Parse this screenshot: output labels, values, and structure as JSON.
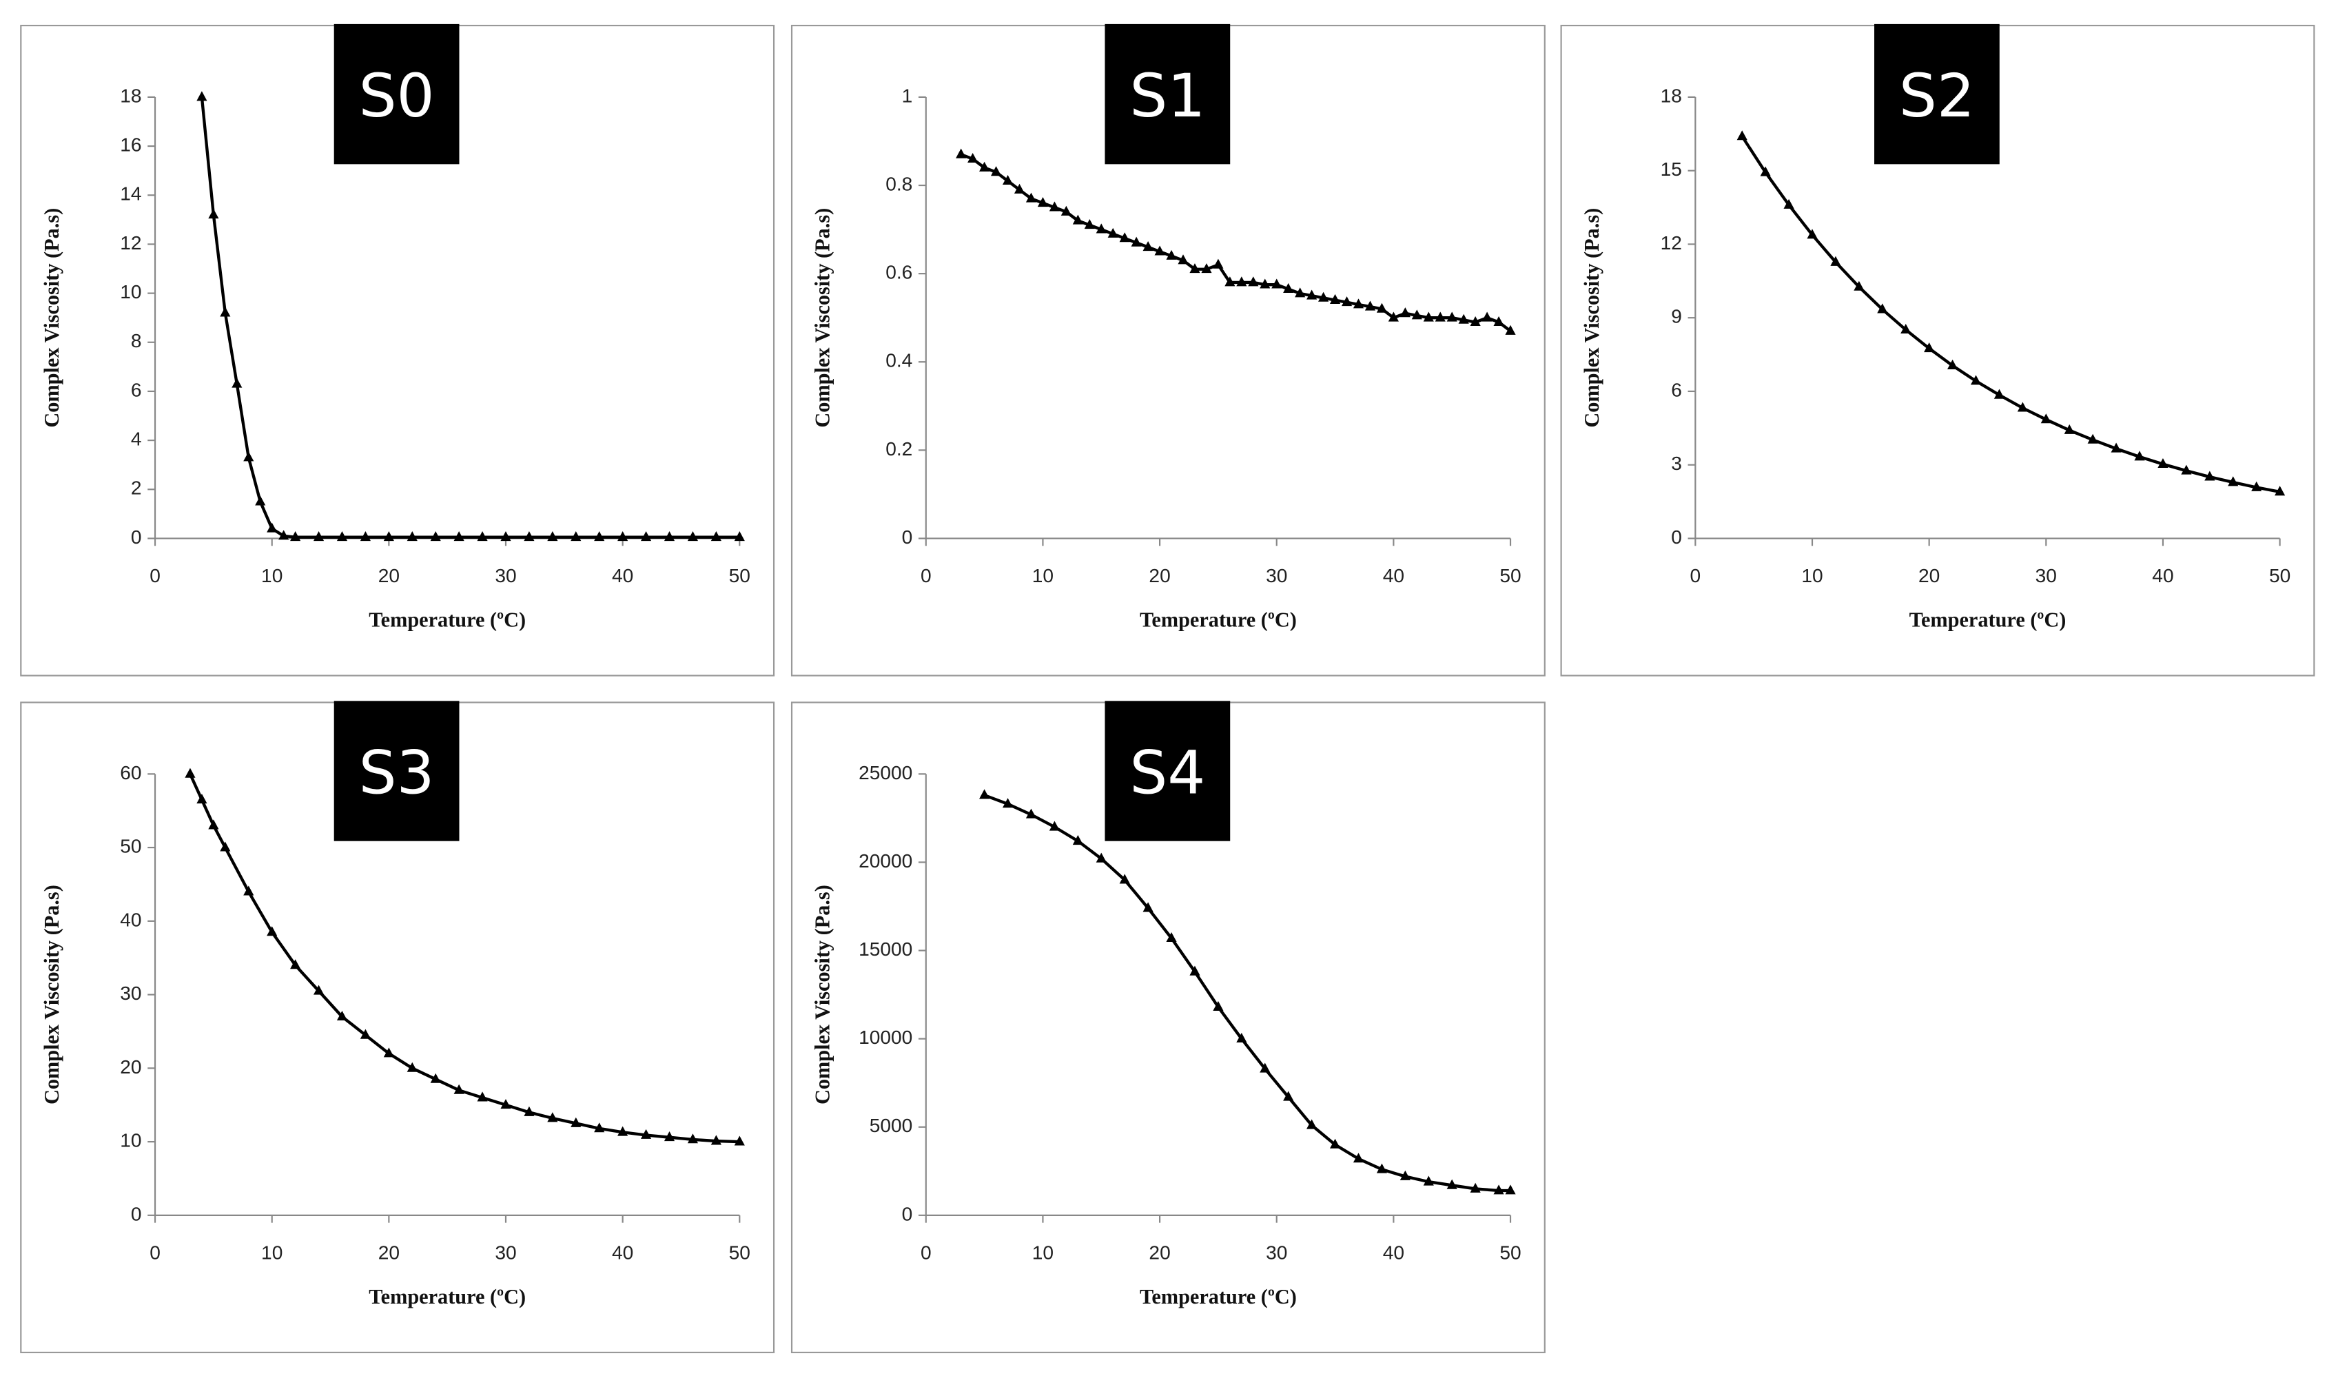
{
  "chart_data": [
    {
      "type": "line",
      "title": "S0",
      "xlabel": "Temperature (ºC)",
      "ylabel": "Complex Viscosity (Pa.s)",
      "x": [
        4,
        5,
        6,
        7,
        8,
        9,
        10,
        11,
        12,
        14,
        16,
        18,
        20,
        22,
        24,
        26,
        28,
        30,
        32,
        34,
        36,
        38,
        40,
        42,
        44,
        46,
        48,
        50
      ],
      "values": [
        18,
        13.2,
        9.2,
        6.3,
        3.3,
        1.5,
        0.4,
        0.1,
        0.05,
        0.05,
        0.05,
        0.05,
        0.05,
        0.05,
        0.05,
        0.05,
        0.05,
        0.05,
        0.05,
        0.05,
        0.05,
        0.05,
        0.05,
        0.05,
        0.05,
        0.05,
        0.05,
        0.05
      ],
      "color": "#000000",
      "xlim": [
        0,
        50
      ],
      "xticks": [
        0,
        10,
        20,
        30,
        40,
        50
      ],
      "ylim": [
        0,
        18
      ],
      "yticks": [
        0,
        2,
        4,
        6,
        8,
        10,
        12,
        14,
        16,
        18
      ]
    },
    {
      "type": "line",
      "title": "S1",
      "xlabel": "Temperature (ºC)",
      "ylabel": "Complex Viscosity (Pa.s)",
      "x": [
        3,
        4,
        5,
        6,
        7,
        8,
        9,
        10,
        11,
        12,
        13,
        14,
        15,
        16,
        17,
        18,
        19,
        20,
        21,
        22,
        23,
        24,
        25,
        26,
        27,
        28,
        29,
        30,
        31,
        32,
        33,
        34,
        35,
        36,
        37,
        38,
        39,
        40,
        41,
        42,
        43,
        44,
        45,
        46,
        47,
        48,
        49,
        50
      ],
      "values": [
        0.87,
        0.86,
        0.84,
        0.83,
        0.81,
        0.79,
        0.77,
        0.76,
        0.75,
        0.74,
        0.72,
        0.71,
        0.7,
        0.69,
        0.68,
        0.67,
        0.66,
        0.65,
        0.64,
        0.63,
        0.61,
        0.61,
        0.62,
        0.58,
        0.58,
        0.58,
        0.575,
        0.575,
        0.565,
        0.555,
        0.55,
        0.545,
        0.54,
        0.535,
        0.53,
        0.525,
        0.52,
        0.5,
        0.51,
        0.505,
        0.5,
        0.5,
        0.5,
        0.495,
        0.49,
        0.5,
        0.49,
        0.47
      ],
      "color": "#000000",
      "xlim": [
        0,
        50
      ],
      "xticks": [
        0,
        10,
        20,
        30,
        40,
        50
      ],
      "ylim": [
        0,
        1
      ],
      "yticks": [
        0,
        0.2,
        0.4,
        0.6,
        0.8,
        1
      ]
    },
    {
      "type": "line",
      "title": "S2",
      "xlabel": "Temperature (ºC)",
      "ylabel": "Complex Viscosity (Pa.s)",
      "x": [
        4,
        6,
        8,
        10,
        12,
        14,
        16,
        18,
        20,
        22,
        24,
        26,
        28,
        30,
        32,
        34,
        36,
        38,
        40,
        42,
        44,
        46,
        48,
        50
      ],
      "values": [
        16.4,
        14.93,
        13.6,
        12.38,
        11.27,
        10.26,
        9.34,
        8.51,
        7.75,
        7.05,
        6.42,
        5.85,
        5.32,
        4.85,
        4.41,
        4.02,
        3.66,
        3.33,
        3.03,
        2.76,
        2.51,
        2.29,
        2.08,
        1.9
      ],
      "color": "#000000",
      "xlim": [
        0,
        50
      ],
      "xticks": [
        0,
        10,
        20,
        30,
        40,
        50
      ],
      "ylim": [
        0,
        18
      ],
      "yticks": [
        0,
        3,
        6,
        9,
        12,
        15,
        18
      ]
    },
    {
      "type": "line",
      "title": "S3",
      "xlabel": "Temperature (ºC)",
      "ylabel": "Complex Viscosity (Pa.s)",
      "x": [
        3,
        4,
        5,
        6,
        8,
        10,
        12,
        14,
        16,
        18,
        20,
        22,
        24,
        26,
        28,
        30,
        32,
        34,
        36,
        38,
        40,
        42,
        44,
        46,
        48,
        50
      ],
      "values": [
        60,
        56.5,
        53,
        50,
        44,
        38.5,
        34,
        30.5,
        27,
        24.5,
        22,
        20,
        18.5,
        17,
        16,
        15,
        14,
        13.2,
        12.5,
        11.8,
        11.3,
        10.9,
        10.6,
        10.3,
        10.1,
        10
      ],
      "color": "#000000",
      "xlim": [
        0,
        50
      ],
      "xticks": [
        0,
        10,
        20,
        30,
        40,
        50
      ],
      "ylim": [
        0,
        60
      ],
      "yticks": [
        0,
        10,
        20,
        30,
        40,
        50,
        60
      ]
    },
    {
      "type": "line",
      "title": "S4",
      "xlabel": "Temperature (ºC)",
      "ylabel": "Complex Viscosity (Pa.s)",
      "x": [
        5,
        7,
        9,
        11,
        13,
        15,
        17,
        19,
        21,
        23,
        25,
        27,
        29,
        31,
        33,
        35,
        37,
        39,
        41,
        43,
        45,
        47,
        49,
        50
      ],
      "values": [
        23800,
        23300,
        22700,
        22000,
        21200,
        20200,
        19000,
        17400,
        15700,
        13800,
        11800,
        10000,
        8300,
        6700,
        5100,
        4000,
        3200,
        2600,
        2200,
        1900,
        1700,
        1500,
        1400,
        1400
      ],
      "color": "#000000",
      "xlim": [
        0,
        50
      ],
      "xticks": [
        0,
        10,
        20,
        30,
        40,
        50
      ],
      "ylim": [
        0,
        25000
      ],
      "yticks": [
        0,
        5000,
        10000,
        15000,
        20000,
        25000
      ]
    }
  ]
}
